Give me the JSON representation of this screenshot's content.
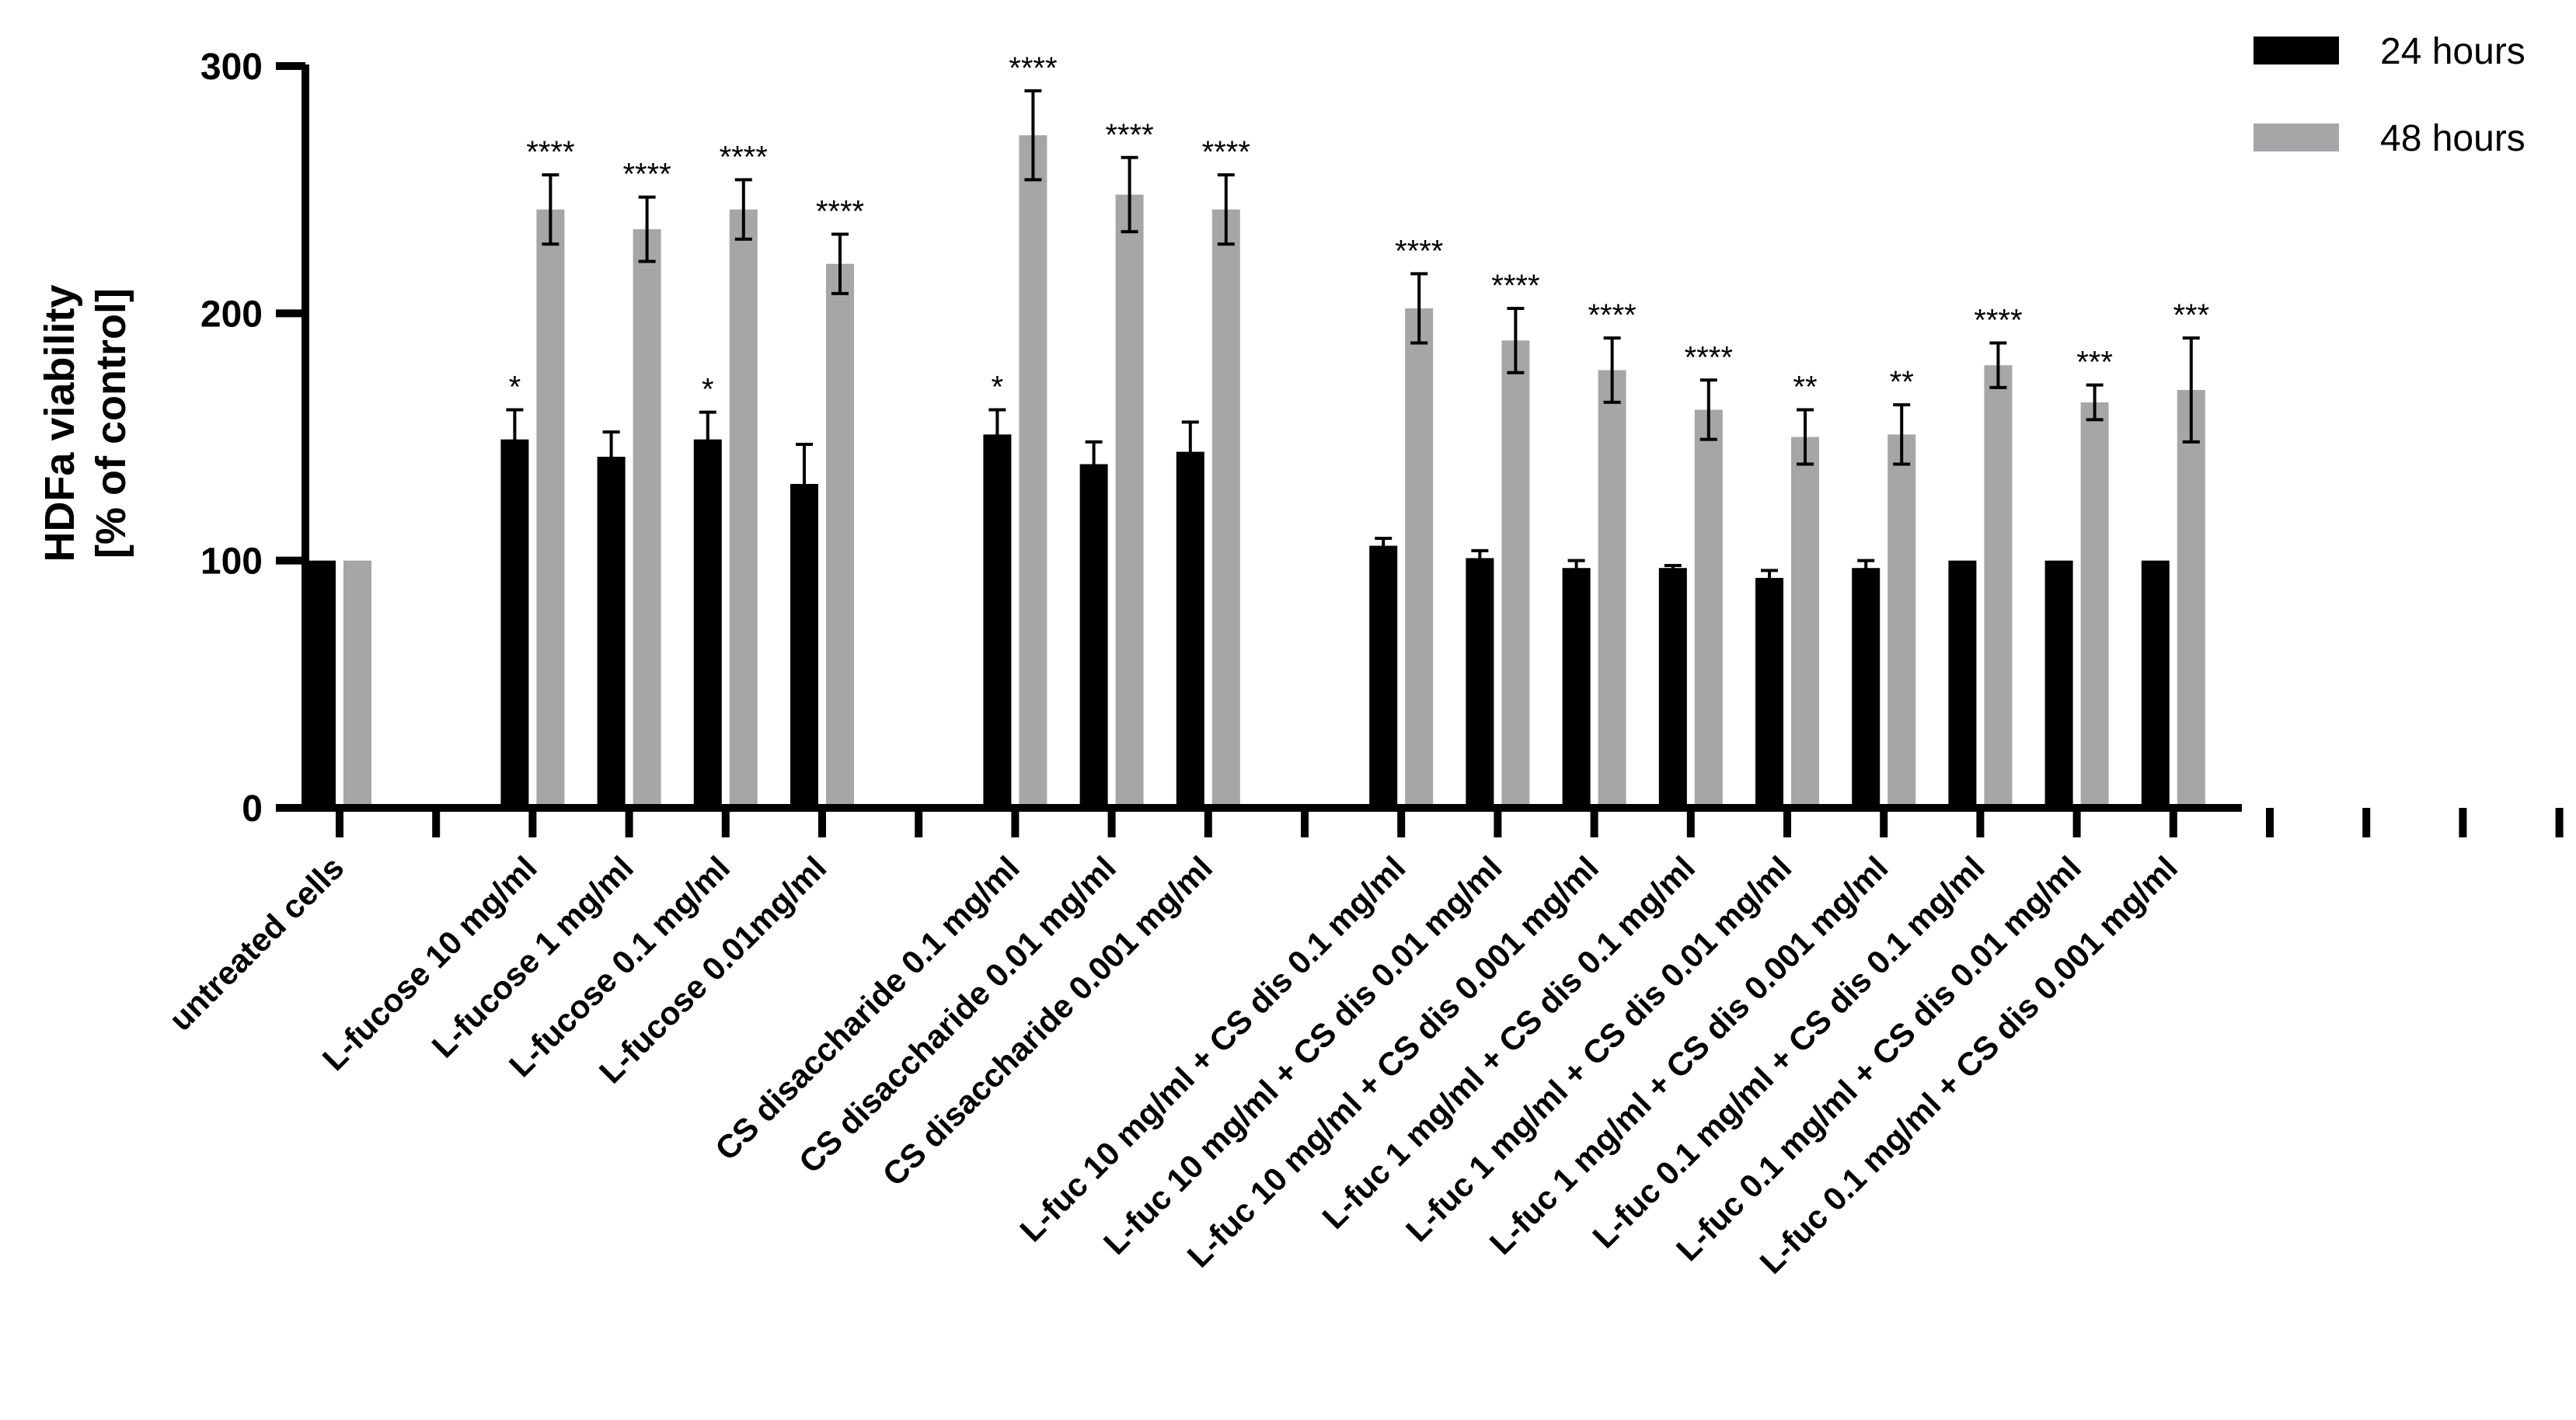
{
  "chart_data": {
    "type": "bar",
    "title": "",
    "ylabel": [
      "HDFa viability",
      "[% of control]"
    ],
    "xlabel": "",
    "ylim": [
      0,
      300
    ],
    "yticks": [
      0,
      100,
      200,
      300
    ],
    "ytick_labels": [
      "0",
      "100",
      "200",
      "300"
    ],
    "legend_position": "top-right",
    "slot_count": 24,
    "categories": [
      {
        "slot": 0,
        "label": "untreated cells"
      },
      {
        "slot": 2,
        "label": "L-fucose 10 mg/ml"
      },
      {
        "slot": 3,
        "label": "L-fucose 1 mg/ml"
      },
      {
        "slot": 4,
        "label": "L-fucose 0.1 mg/ml"
      },
      {
        "slot": 5,
        "label": "L-fucose 0.01mg/ml"
      },
      {
        "slot": 7,
        "label": "CS disaccharide 0.1 mg/ml"
      },
      {
        "slot": 8,
        "label": "CS disaccharide 0.01 mg/ml"
      },
      {
        "slot": 9,
        "label": "CS disaccharide 0.001 mg/ml"
      },
      {
        "slot": 11,
        "label": "L-fuc 10 mg/ml + CS dis 0.1 mg/ml"
      },
      {
        "slot": 12,
        "label": "L-fuc 10 mg/ml + CS dis 0.01 mg/ml"
      },
      {
        "slot": 13,
        "label": "L-fuc 10 mg/ml + CS dis 0.001 mg/ml"
      },
      {
        "slot": 14,
        "label": "L-fuc 1 mg/ml + CS dis 0.1 mg/ml"
      },
      {
        "slot": 15,
        "label": "L-fuc 1 mg/ml + CS dis 0.01 mg/ml"
      },
      {
        "slot": 16,
        "label": "L-fuc 1 mg/ml + CS dis 0.001 mg/ml"
      },
      {
        "slot": 17,
        "label": "L-fuc 0.1 mg/ml + CS dis 0.1 mg/ml"
      },
      {
        "slot": 18,
        "label": "L-fuc 0.1 mg/ml + CS dis 0.01 mg/ml"
      },
      {
        "slot": 19,
        "label": "L-fuc 0.1 mg/ml + CS dis 0.001 mg/ml"
      }
    ],
    "series": [
      {
        "name": "24 hours",
        "color": "#000000",
        "values": [
          100,
          149,
          142,
          149,
          131,
          151,
          139,
          144,
          106,
          101,
          97,
          97,
          93,
          97,
          100,
          100,
          100
        ],
        "errors": [
          0,
          12,
          10,
          11,
          16,
          10,
          9,
          12,
          3,
          3,
          3,
          1,
          3,
          3,
          0,
          0,
          0
        ],
        "significance": [
          "",
          "*",
          "",
          "*",
          "",
          "*",
          "",
          "",
          "",
          "",
          "",
          "",
          "",
          "",
          "",
          "",
          ""
        ]
      },
      {
        "name": "48 hours",
        "color": "#a6a6a8",
        "values": [
          100,
          242,
          234,
          242,
          220,
          272,
          248,
          242,
          202,
          189,
          177,
          161,
          150,
          151,
          179,
          164,
          169
        ],
        "errors": [
          0,
          14,
          13,
          12,
          12,
          18,
          15,
          14,
          14,
          13,
          13,
          12,
          11,
          12,
          9,
          7,
          21
        ],
        "significance": [
          "",
          "****",
          "****",
          "****",
          "****",
          "****",
          "****",
          "****",
          "****",
          "****",
          "****",
          "****",
          "**",
          "**",
          "****",
          "***",
          "***"
        ]
      }
    ]
  }
}
